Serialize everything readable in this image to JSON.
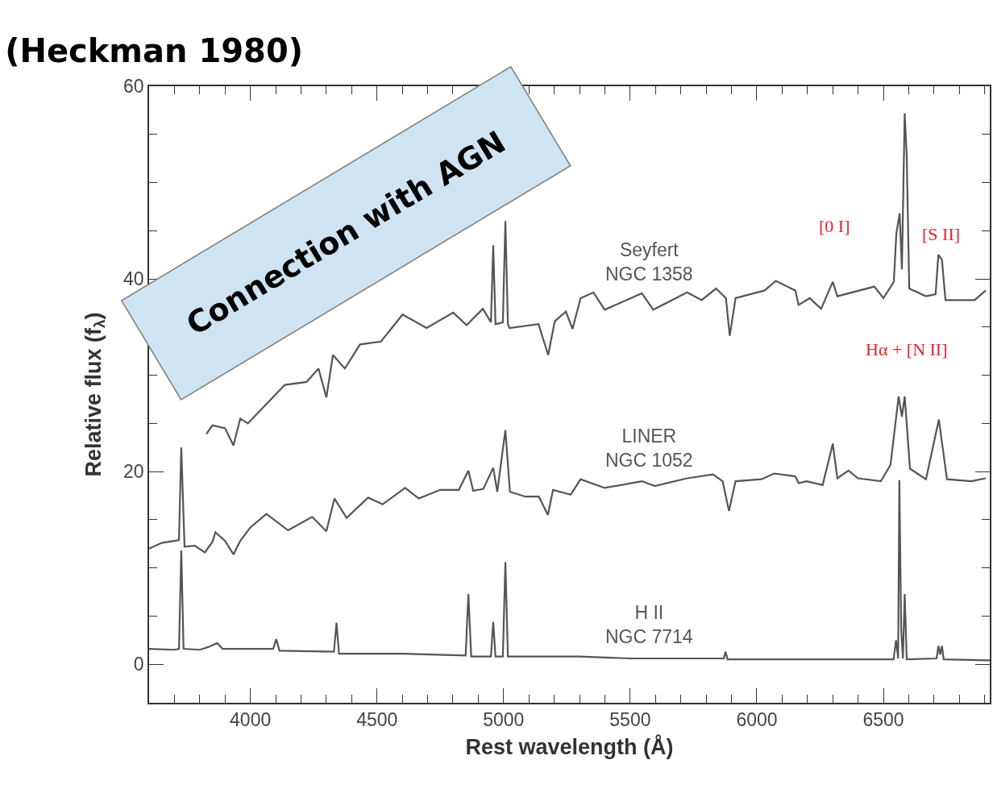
{
  "chart_data": {
    "type": "line",
    "title": "(Heckman 1980)",
    "xlabel": "Rest wavelength (Å)",
    "ylabel": "Relative flux (f$_{λ}$)",
    "xlim": [
      3600,
      6920
    ],
    "ylim": [
      -4,
      60
    ],
    "xticks": [
      {
        "value": 3700,
        "label": null
      },
      {
        "value": 3800,
        "label": null
      },
      {
        "value": 3900,
        "label": null
      },
      4000,
      {
        "value": 4100,
        "label": null
      },
      {
        "value": 4200,
        "label": null
      },
      {
        "value": 4300,
        "label": null
      },
      {
        "value": 4400,
        "label": null
      },
      4500,
      {
        "value": 4600,
        "label": null
      },
      {
        "value": 4700,
        "label": null
      },
      {
        "value": 4800,
        "label": null
      },
      {
        "value": 4900,
        "label": null
      },
      5000,
      {
        "value": 5100,
        "label": null
      },
      {
        "value": 5200,
        "label": null
      },
      {
        "value": 5300,
        "label": null
      },
      {
        "value": 5400,
        "label": null
      },
      5500,
      {
        "value": 5600,
        "label": null
      },
      {
        "value": 5700,
        "label": null
      },
      {
        "value": 5800,
        "label": null
      },
      {
        "value": 5900,
        "label": null
      },
      6000,
      {
        "value": 6100,
        "label": null
      },
      {
        "value": 6200,
        "label": null
      },
      {
        "value": 6300,
        "label": null
      },
      {
        "value": 6400,
        "label": null
      },
      6500,
      {
        "value": 6600,
        "label": null
      },
      {
        "value": 6700,
        "label": null
      },
      {
        "value": 6800,
        "label": null
      },
      {
        "value": 6900,
        "label": null
      }
    ],
    "yticks": [
      0,
      {
        "value": 5,
        "label": null
      },
      {
        "value": 10,
        "label": null
      },
      {
        "value": 15,
        "label": null
      },
      20,
      {
        "value": 25,
        "label": null
      },
      {
        "value": 30,
        "label": null
      },
      {
        "value": 35,
        "label": null
      },
      40,
      {
        "value": 45,
        "label": null
      },
      {
        "value": 50,
        "label": null
      },
      {
        "value": 55,
        "label": null
      },
      60
    ],
    "marker": "none",
    "line_style": "solid",
    "series": [
      {
        "color": "#555555",
        "x": [
          3826,
          3850,
          3900,
          3933,
          3960,
          3990,
          4136,
          4222,
          4269,
          4300,
          4326,
          4373,
          4433,
          4516,
          4601,
          4696,
          4801,
          4854,
          4918,
          4950,
          4959,
          4968,
          4997,
          5007,
          5017,
          5023,
          5138,
          5176,
          5202,
          5246,
          5272,
          5304,
          5355,
          5399,
          5546,
          5591,
          5725,
          5782,
          5839,
          5878,
          5893,
          5916,
          6031,
          6075,
          6152,
          6165,
          6209,
          6254,
          6300,
          6318,
          6464,
          6500,
          6541,
          6551,
          6564,
          6573,
          6584,
          6592,
          6602,
          6668,
          6706,
          6717,
          6731,
          6745,
          6860,
          6904
        ],
        "values": [
          23.9,
          24.8,
          24.5,
          22.7,
          25.5,
          25.0,
          29.0,
          29.3,
          30.7,
          27.7,
          32.1,
          30.7,
          33.2,
          33.5,
          36.3,
          34.9,
          36.5,
          35.2,
          36.9,
          35.5,
          43.5,
          35.3,
          35.5,
          46.0,
          35.3,
          34.9,
          35.3,
          32.1,
          35.6,
          36.6,
          34.8,
          38.0,
          38.6,
          36.8,
          38.5,
          36.8,
          38.6,
          37.8,
          39.0,
          38.0,
          34.1,
          38.0,
          38.8,
          39.8,
          38.8,
          37.3,
          38.0,
          36.9,
          39.7,
          38.2,
          39.2,
          38.0,
          39.7,
          44.7,
          46.8,
          41.0,
          57.2,
          52.8,
          39.0,
          38.2,
          38.4,
          42.5,
          42.0,
          37.8,
          37.8,
          38.8
        ]
      },
      {
        "color": "#555555",
        "x": [
          3600,
          3650,
          3700,
          3718,
          3727,
          3740,
          3780,
          3820,
          3850,
          3862,
          3900,
          3933,
          3960,
          4000,
          4063,
          4149,
          4244,
          4300,
          4332,
          4380,
          4465,
          4522,
          4611,
          4665,
          4750,
          4823,
          4861,
          4880,
          4920,
          4959,
          4975,
          5007,
          5025,
          5086,
          5139,
          5175,
          5195,
          5265,
          5304,
          5399,
          5546,
          5597,
          5724,
          5827,
          5865,
          5890,
          5916,
          6018,
          6069,
          6152,
          6165,
          6196,
          6260,
          6300,
          6318,
          6362,
          6400,
          6490,
          6528,
          6560,
          6573,
          6584,
          6605,
          6668,
          6719,
          6751,
          6847,
          6904
        ],
        "values": [
          12.0,
          12.6,
          12.8,
          12.9,
          22.5,
          12.2,
          12.3,
          11.6,
          12.7,
          13.7,
          12.8,
          11.4,
          12.8,
          14.2,
          15.6,
          13.9,
          15.3,
          13.8,
          17.2,
          15.2,
          17.3,
          16.6,
          18.3,
          17.2,
          18.1,
          18.1,
          20.1,
          18.0,
          18.2,
          20.4,
          17.9,
          24.3,
          17.9,
          17.4,
          17.4,
          15.5,
          18.1,
          17.6,
          19.2,
          18.3,
          19.0,
          18.5,
          19.3,
          19.7,
          19.0,
          15.9,
          19.0,
          19.2,
          19.8,
          19.5,
          18.8,
          19.0,
          18.6,
          22.9,
          19.3,
          20.1,
          19.3,
          19.0,
          20.7,
          27.8,
          25.7,
          27.8,
          20.3,
          19.2,
          25.4,
          19.2,
          19.0,
          19.3
        ]
      },
      {
        "color": "#555555",
        "x": [
          3600,
          3700,
          3718,
          3727,
          3736,
          3800,
          3835,
          3869,
          3890,
          4000,
          4090,
          4102,
          4115,
          4330,
          4340,
          4350,
          4600,
          4850,
          4861,
          4872,
          4950,
          4959,
          4968,
          4997,
          5007,
          5017,
          5300,
          5500,
          5870,
          5876,
          5885,
          6300,
          6540,
          6550,
          6558,
          6563,
          6570,
          6577,
          6584,
          6592,
          6710,
          6717,
          6724,
          6731,
          6738,
          6920
        ],
        "values": [
          1.6,
          1.5,
          1.6,
          11.8,
          1.6,
          1.5,
          1.8,
          2.2,
          1.6,
          1.6,
          1.6,
          2.6,
          1.4,
          1.3,
          4.3,
          1.1,
          1.1,
          0.9,
          7.3,
          0.8,
          0.8,
          4.4,
          0.8,
          0.8,
          10.6,
          0.8,
          0.8,
          0.6,
          0.6,
          1.3,
          0.5,
          0.5,
          0.5,
          2.5,
          0.6,
          19.1,
          3.6,
          0.6,
          7.3,
          0.5,
          0.6,
          1.9,
          1.0,
          1.9,
          0.5,
          0.4
        ]
      }
    ],
    "annotations": [
      "Seyfert\nNGC 1358",
      "LINER\nNGC 1052",
      "H II\nNGC 7714",
      "[0 I]",
      "[S II]",
      "Hα + [N II]",
      "Connection with AGN"
    ]
  }
}
